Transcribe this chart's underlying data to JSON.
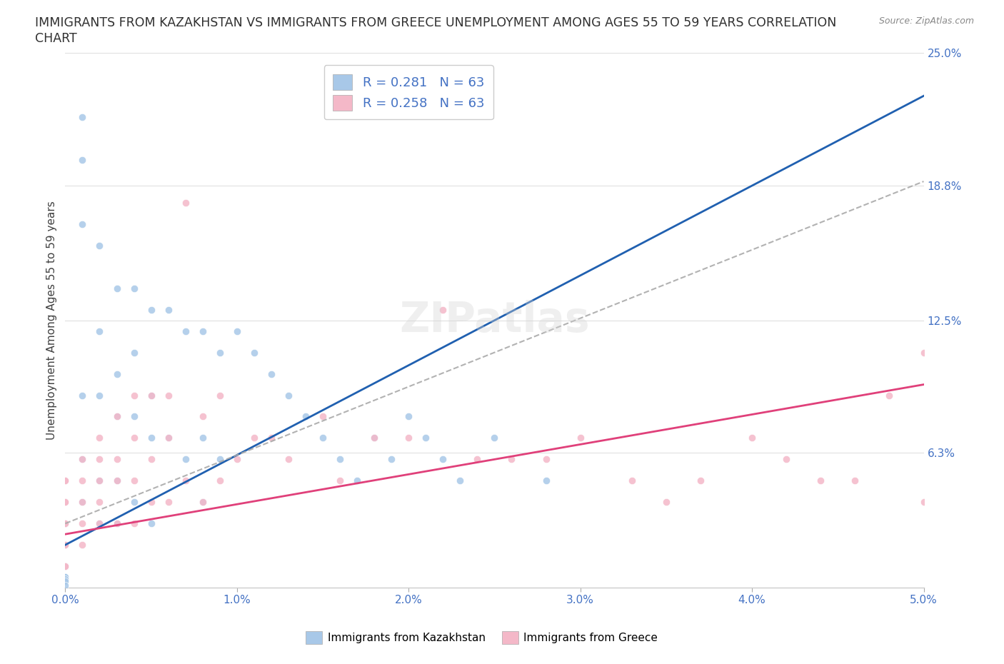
{
  "title_line1": "IMMIGRANTS FROM KAZAKHSTAN VS IMMIGRANTS FROM GREECE UNEMPLOYMENT AMONG AGES 55 TO 59 YEARS CORRELATION",
  "title_line2": "CHART",
  "source_text": "Source: ZipAtlas.com",
  "ylabel": "Unemployment Among Ages 55 to 59 years",
  "x_min": 0.0,
  "x_max": 0.05,
  "y_min": 0.0,
  "y_max": 0.25,
  "y_ticks_right": [
    0.063,
    0.125,
    0.188,
    0.25
  ],
  "y_tick_labels_right": [
    "6.3%",
    "12.5%",
    "18.8%",
    "25.0%"
  ],
  "x_tick_labels": [
    "0.0%",
    "1.0%",
    "2.0%",
    "3.0%",
    "4.0%",
    "5.0%"
  ],
  "x_ticks": [
    0.0,
    0.01,
    0.02,
    0.03,
    0.04,
    0.05
  ],
  "legend_label_kaz": "Immigrants from Kazakhstan",
  "legend_label_gre": "Immigrants from Greece",
  "legend_r_kaz": "R = 0.281   N = 63",
  "legend_r_gre": "R = 0.258   N = 63",
  "color_kaz": "#a8c8e8",
  "color_gre": "#f4b8c8",
  "trend_color_kaz": "#2060b0",
  "trend_color_gre": "#e0407a",
  "dash_color": "#aaaaaa",
  "watermark": "ZIPatlas",
  "background_color": "#ffffff",
  "grid_color": "#e0e0e0",
  "title_color": "#303030",
  "axis_label_color": "#404040",
  "tick_color_right": "#4472c4",
  "tick_color_bottom": "#4472c4",
  "kaz_x": [
    0.0,
    0.0,
    0.0,
    0.0,
    0.0,
    0.0,
    0.0,
    0.0,
    0.0,
    0.0,
    0.0,
    0.0,
    0.0,
    0.0,
    0.001,
    0.001,
    0.001,
    0.001,
    0.001,
    0.001,
    0.002,
    0.002,
    0.002,
    0.002,
    0.002,
    0.003,
    0.003,
    0.003,
    0.003,
    0.003,
    0.004,
    0.004,
    0.004,
    0.004,
    0.005,
    0.005,
    0.005,
    0.005,
    0.006,
    0.006,
    0.007,
    0.007,
    0.008,
    0.008,
    0.008,
    0.009,
    0.009,
    0.01,
    0.011,
    0.012,
    0.013,
    0.014,
    0.015,
    0.016,
    0.017,
    0.018,
    0.019,
    0.02,
    0.021,
    0.022,
    0.023,
    0.025,
    0.028
  ],
  "kaz_y": [
    0.03,
    0.03,
    0.03,
    0.02,
    0.02,
    0.02,
    0.01,
    0.01,
    0.01,
    0.005,
    0.005,
    0.004,
    0.003,
    0.001,
    0.22,
    0.2,
    0.17,
    0.09,
    0.06,
    0.04,
    0.16,
    0.12,
    0.09,
    0.05,
    0.03,
    0.14,
    0.1,
    0.08,
    0.05,
    0.03,
    0.14,
    0.11,
    0.08,
    0.04,
    0.13,
    0.09,
    0.07,
    0.03,
    0.13,
    0.07,
    0.12,
    0.06,
    0.12,
    0.07,
    0.04,
    0.11,
    0.06,
    0.12,
    0.11,
    0.1,
    0.09,
    0.08,
    0.07,
    0.06,
    0.05,
    0.07,
    0.06,
    0.08,
    0.07,
    0.06,
    0.05,
    0.07,
    0.05
  ],
  "gre_x": [
    0.0,
    0.0,
    0.0,
    0.0,
    0.0,
    0.0,
    0.0,
    0.0,
    0.0,
    0.0,
    0.001,
    0.001,
    0.001,
    0.001,
    0.001,
    0.002,
    0.002,
    0.002,
    0.002,
    0.002,
    0.003,
    0.003,
    0.003,
    0.003,
    0.004,
    0.004,
    0.004,
    0.004,
    0.005,
    0.005,
    0.005,
    0.006,
    0.006,
    0.006,
    0.007,
    0.007,
    0.008,
    0.008,
    0.009,
    0.009,
    0.01,
    0.011,
    0.012,
    0.013,
    0.015,
    0.016,
    0.018,
    0.02,
    0.022,
    0.024,
    0.026,
    0.028,
    0.03,
    0.033,
    0.035,
    0.037,
    0.04,
    0.042,
    0.044,
    0.046,
    0.048,
    0.05,
    0.05
  ],
  "gre_y": [
    0.05,
    0.05,
    0.04,
    0.04,
    0.03,
    0.03,
    0.02,
    0.02,
    0.01,
    0.01,
    0.06,
    0.05,
    0.04,
    0.03,
    0.02,
    0.07,
    0.06,
    0.05,
    0.04,
    0.03,
    0.08,
    0.06,
    0.05,
    0.03,
    0.09,
    0.07,
    0.05,
    0.03,
    0.09,
    0.06,
    0.04,
    0.09,
    0.07,
    0.04,
    0.18,
    0.05,
    0.08,
    0.04,
    0.09,
    0.05,
    0.06,
    0.07,
    0.07,
    0.06,
    0.08,
    0.05,
    0.07,
    0.07,
    0.13,
    0.06,
    0.06,
    0.06,
    0.07,
    0.05,
    0.04,
    0.05,
    0.07,
    0.06,
    0.05,
    0.05,
    0.09,
    0.11,
    0.04
  ]
}
